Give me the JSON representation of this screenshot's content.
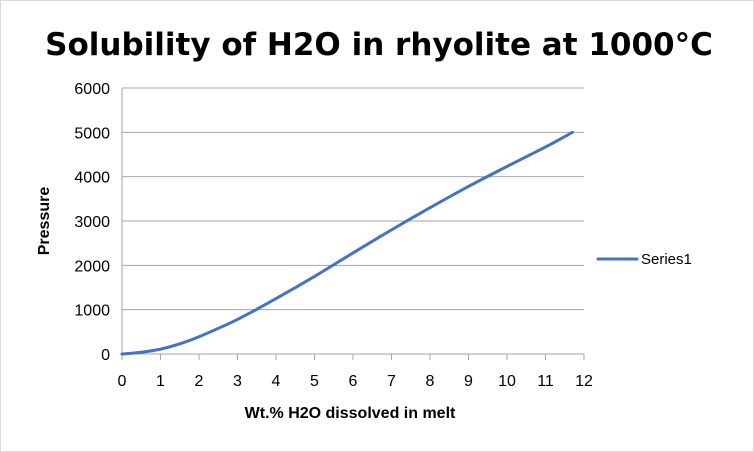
{
  "chart_data": {
    "type": "line",
    "title": "Solubility of H2O in rhyolite at 1000°C",
    "xlabel": "Wt.% H2O dissolved in melt",
    "ylabel": "Pressure",
    "xlim": [
      0,
      12
    ],
    "ylim": [
      0,
      6000
    ],
    "x_ticks": [
      "0",
      "1",
      "2",
      "3",
      "4",
      "5",
      "6",
      "7",
      "8",
      "9",
      "10",
      "11",
      "12"
    ],
    "y_ticks": [
      "0",
      "1000",
      "2000",
      "3000",
      "4000",
      "5000",
      "6000"
    ],
    "grid": "horizontal",
    "legend_position": "right",
    "series": [
      {
        "name": "Series1",
        "color": "#4472c4",
        "x": [
          0,
          0.5,
          1,
          1.5,
          2,
          3,
          4,
          5,
          6,
          7,
          8,
          9,
          10,
          11,
          11.7
        ],
        "y": [
          0,
          40,
          110,
          230,
          390,
          780,
          1250,
          1750,
          2280,
          2800,
          3300,
          3780,
          4230,
          4670,
          5000
        ]
      }
    ]
  }
}
